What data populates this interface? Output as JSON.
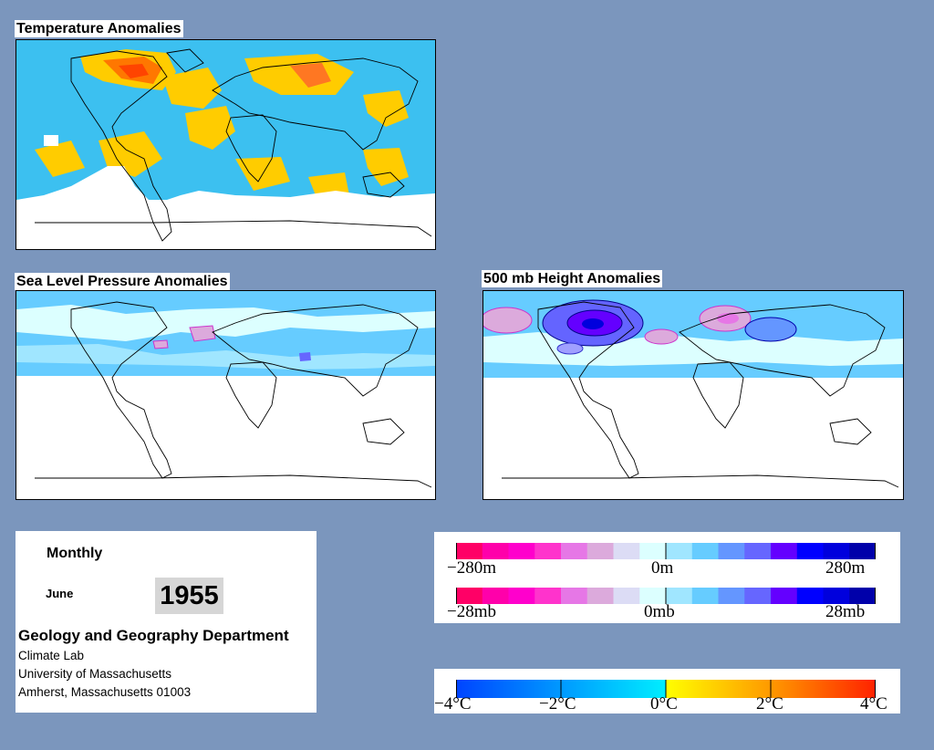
{
  "panels": {
    "temperature": {
      "title": "Temperature Anomalies"
    },
    "slp": {
      "title": "Sea Level Pressure Anomalies"
    },
    "height500": {
      "title": "500 mb Height Anomalies"
    }
  },
  "info": {
    "period": "Monthly",
    "month": "June",
    "year": "1955",
    "department": "Geology and Geography Department",
    "lines": [
      "Climate Lab",
      "University of Massachusetts",
      "Amherst, Massachusetts 01003"
    ]
  },
  "legends": {
    "height": {
      "min_label": "−280m",
      "mid_label": "0m",
      "max_label": "280m"
    },
    "pressure": {
      "min_label": "−28mb",
      "mid_label": "0mb",
      "max_label": "28mb"
    },
    "anomaly_colors": [
      "#ff0066",
      "#ff00aa",
      "#ff00cc",
      "#ff33cc",
      "#e677e6",
      "#dcaadc",
      "#dcdcf5",
      "#dcffff",
      "#a0e6ff",
      "#66ccff",
      "#6496ff",
      "#6666ff",
      "#6400ff",
      "#0000ff",
      "#0000dd",
      "#0000aa"
    ],
    "temperature": {
      "labels": [
        "−4°C",
        "−2°C",
        "0°C",
        "2°C",
        "4°C"
      ]
    }
  },
  "colors": {
    "background": "#7b96bd",
    "cold_anomaly": "#33bbee",
    "warm_anomaly": "#ffcc00",
    "hot_anomaly": "#ff5500",
    "negative_height": "#6666ff",
    "positive_height": "#ff33cc"
  }
}
